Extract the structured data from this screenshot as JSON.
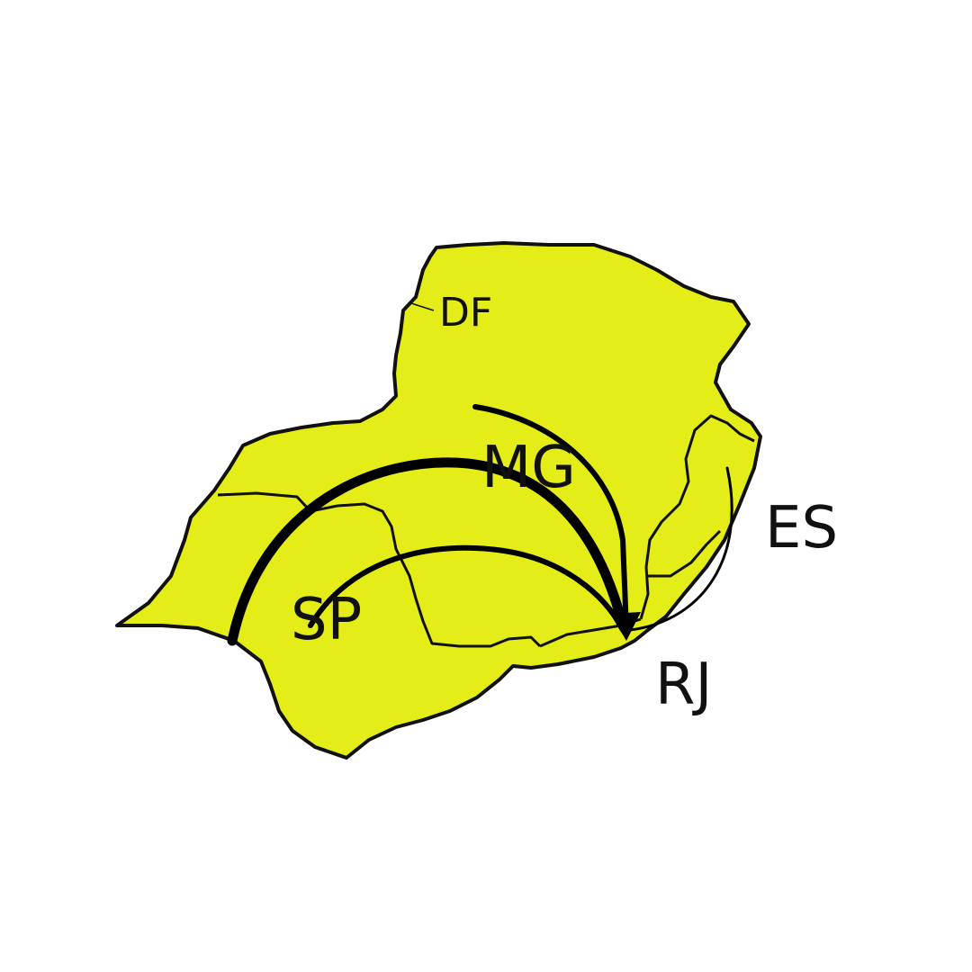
{
  "map": {
    "fill_color": "#e5ed18",
    "line_color": "#000000",
    "labels": {
      "df": "DF",
      "mg": "MG",
      "es": "ES",
      "sp": "SP",
      "rj": "RJ"
    }
  }
}
